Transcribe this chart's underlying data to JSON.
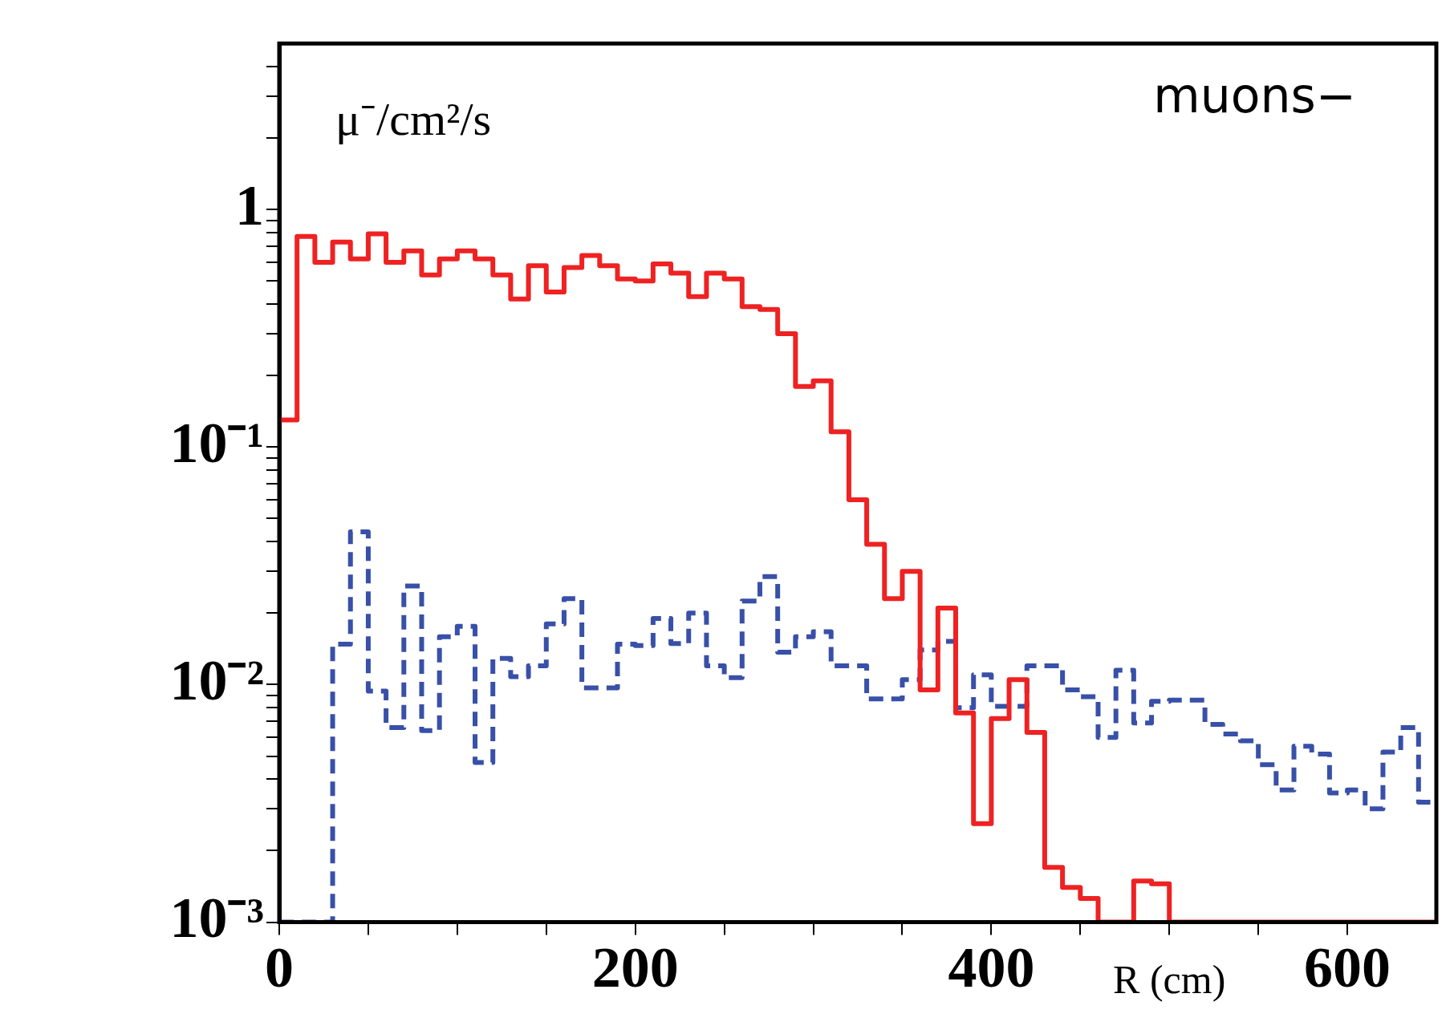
{
  "chart_data": {
    "type": "histogram",
    "title": "muons−",
    "xlabel": "R (cm)",
    "ylabel": "μ⁻/cm²/s",
    "log": "y",
    "grid": false,
    "bins": [
      0,
      10,
      20,
      30,
      40,
      50,
      60,
      70,
      80,
      90,
      100,
      110,
      120,
      130,
      140,
      150,
      160,
      170,
      180,
      190,
      200,
      210,
      220,
      230,
      240,
      250,
      260,
      270,
      280,
      290,
      300,
      310,
      320,
      330,
      340,
      350,
      360,
      370,
      380,
      390,
      400,
      410,
      420,
      430,
      440,
      450,
      460,
      470,
      480,
      490,
      500,
      510,
      520,
      530,
      540,
      550,
      560,
      570,
      580,
      590,
      600,
      610,
      620,
      630,
      640,
      650
    ],
    "series": [
      {
        "color": "#ee2222",
        "line_style": "solid",
        "values": [
          0.13,
          0.77,
          0.6,
          0.73,
          0.62,
          0.79,
          0.6,
          0.67,
          0.53,
          0.62,
          0.67,
          0.62,
          0.53,
          0.42,
          0.58,
          0.45,
          0.57,
          0.64,
          0.58,
          0.51,
          0.5,
          0.59,
          0.54,
          0.43,
          0.54,
          0.51,
          0.39,
          0.38,
          0.3,
          0.18,
          0.19,
          0.116,
          0.06,
          0.039,
          0.023,
          0.03,
          0.0095,
          0.021,
          0.0076,
          0.0026,
          0.0072,
          0.0105,
          0.0063,
          0.0017,
          0.0014,
          0.00126,
          0.001,
          0.001,
          0.00149,
          0.00145,
          0.001,
          0.001,
          0.001,
          0.001,
          0.001,
          0.001,
          0.001,
          0.001,
          0.001,
          0.001,
          0.001,
          0.001,
          0.001,
          0.001,
          0.001
        ]
      },
      {
        "color": "#3850a8",
        "line_style": "dashed",
        "values": [
          0.001,
          0.001,
          0.001,
          0.0148,
          0.044,
          0.0094,
          0.0066,
          0.026,
          0.0064,
          0.0159,
          0.0176,
          0.0047,
          0.0129,
          0.0108,
          0.012,
          0.018,
          0.023,
          0.0097,
          0.0097,
          0.0148,
          0.0146,
          0.019,
          0.0149,
          0.02,
          0.012,
          0.0107,
          0.0225,
          0.0285,
          0.0137,
          0.0159,
          0.0167,
          0.012,
          0.012,
          0.0087,
          0.0087,
          0.0105,
          0.014,
          0.0152,
          0.008,
          0.011,
          0.0081,
          0.0081,
          0.012,
          0.012,
          0.0095,
          0.0089,
          0.006,
          0.0115,
          0.0069,
          0.0085,
          0.0086,
          0.0086,
          0.0068,
          0.0062,
          0.0058,
          0.0046,
          0.0036,
          0.0055,
          0.0051,
          0.0035,
          0.0036,
          0.003,
          0.0052,
          0.0066,
          0.0032
        ]
      }
    ],
    "xlim": [
      0,
      650
    ],
    "xticks": [
      0,
      {
        "value": 50,
        "label": null
      },
      {
        "value": 100,
        "label": null
      },
      {
        "value": 150,
        "label": null
      },
      200,
      {
        "value": 250,
        "label": null
      },
      {
        "value": 300,
        "label": null
      },
      {
        "value": 350,
        "label": null
      },
      400,
      {
        "value": 450,
        "label": null
      },
      {
        "value": 500,
        "label": null
      },
      {
        "value": 550,
        "label": null
      },
      600
    ],
    "ylim": [
      0.001,
      5
    ],
    "yticks": [
      {
        "value": 0.001,
        "label": "10⁻³"
      },
      {
        "value": 0.002,
        "label": null
      },
      {
        "value": 0.003,
        "label": null
      },
      {
        "value": 0.004,
        "label": null
      },
      {
        "value": 0.005,
        "label": null
      },
      {
        "value": 0.006,
        "label": null
      },
      {
        "value": 0.007,
        "label": null
      },
      {
        "value": 0.008,
        "label": null
      },
      {
        "value": 0.009,
        "label": null
      },
      {
        "value": 0.01,
        "label": "10⁻²"
      },
      {
        "value": 0.02,
        "label": null
      },
      {
        "value": 0.03,
        "label": null
      },
      {
        "value": 0.04,
        "label": null
      },
      {
        "value": 0.05,
        "label": null
      },
      {
        "value": 0.06,
        "label": null
      },
      {
        "value": 0.07,
        "label": null
      },
      {
        "value": 0.08,
        "label": null
      },
      {
        "value": 0.09,
        "label": null
      },
      {
        "value": 0.1,
        "label": "10⁻¹"
      },
      {
        "value": 0.2,
        "label": null
      },
      {
        "value": 0.3,
        "label": null
      },
      {
        "value": 0.4,
        "label": null
      },
      {
        "value": 0.5,
        "label": null
      },
      {
        "value": 0.6,
        "label": null
      },
      {
        "value": 0.7,
        "label": null
      },
      {
        "value": 0.8,
        "label": null
      },
      {
        "value": 0.9,
        "label": null
      },
      1,
      {
        "value": 2,
        "label": null
      },
      {
        "value": 3,
        "label": null
      },
      {
        "value": 4,
        "label": null
      }
    ]
  }
}
